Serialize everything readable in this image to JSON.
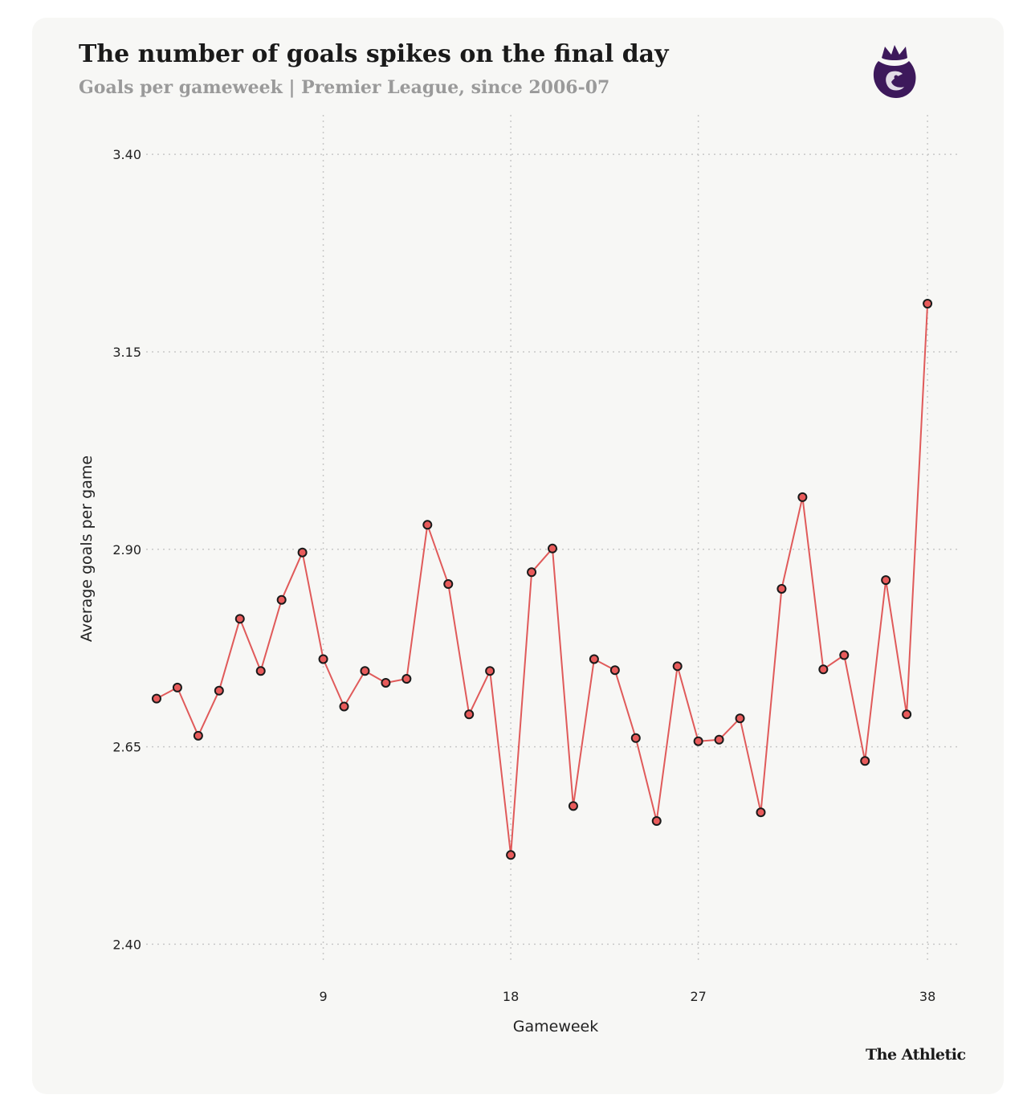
{
  "header": {
    "title": "The number of goals spikes on the final day",
    "subtitle": "Goals per gameweek | Premier League, since 2006-07"
  },
  "footer": {
    "brand": "The Athletic"
  },
  "logo": {
    "icon": "premier-league-lion-icon",
    "color": "#3d195b"
  },
  "colors": {
    "line": "#e05a5a",
    "marker_fill": "#e85b5b",
    "marker_stroke": "#1a1a1a",
    "grid": "#c8c8c8",
    "background": "#f7f7f5"
  },
  "chart_data": {
    "type": "line",
    "xlabel": "Gameweek",
    "ylabel": "Average goals per game",
    "xlim": [
      0.5,
      39.5
    ],
    "ylim": [
      2.375,
      3.45
    ],
    "xticks": [
      9,
      18,
      27,
      38
    ],
    "yticks": [
      2.4,
      2.65,
      2.9,
      3.15,
      3.4
    ],
    "ytick_labels": [
      "2.40",
      "2.65",
      "2.90",
      "3.15",
      "3.40"
    ],
    "grid": true,
    "series": [
      {
        "x": [
          1,
          2,
          3,
          4,
          5,
          6,
          7,
          8,
          9,
          10,
          11,
          12,
          13,
          14,
          15,
          16,
          17,
          18,
          19,
          20,
          21,
          22,
          23,
          24,
          25,
          26,
          27,
          28,
          29,
          30,
          31,
          32,
          33,
          34,
          35,
          36,
          37,
          38
        ],
        "values": [
          2.711,
          2.725,
          2.664,
          2.721,
          2.812,
          2.746,
          2.836,
          2.896,
          2.761,
          2.701,
          2.746,
          2.731,
          2.736,
          2.931,
          2.856,
          2.691,
          2.746,
          2.513,
          2.871,
          2.901,
          2.575,
          2.761,
          2.747,
          2.661,
          2.556,
          2.752,
          2.657,
          2.659,
          2.686,
          2.567,
          2.85,
          2.966,
          2.748,
          2.766,
          2.632,
          2.861,
          2.691,
          3.211
        ]
      }
    ]
  }
}
